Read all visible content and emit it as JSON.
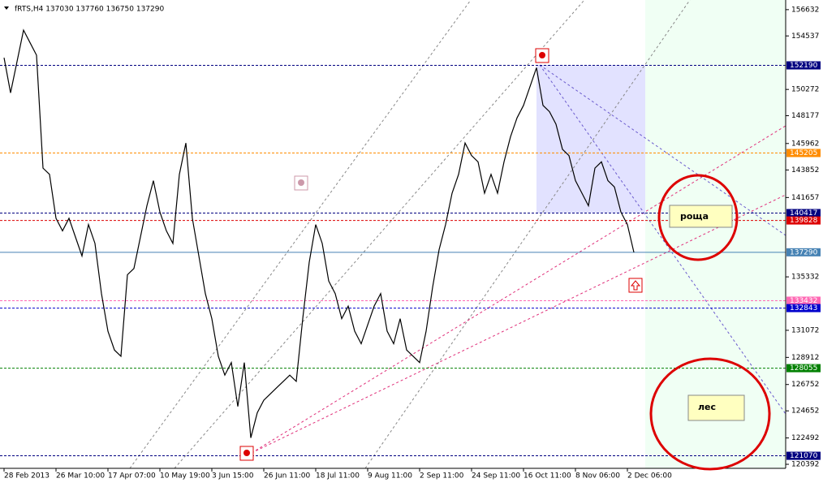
{
  "chart_data": {
    "type": "line",
    "title": "fRTS,H4 137030 137760 136750 137290",
    "categories": [
      "28 Feb 2013",
      null,
      null,
      null,
      null,
      null,
      null,
      null,
      "26 Mar 10:00",
      null,
      null,
      null,
      null,
      null,
      null,
      null,
      "17 Apr 07:00",
      null,
      null,
      null,
      null,
      null,
      null,
      null,
      "10 May 19:00",
      null,
      null,
      null,
      null,
      null,
      null,
      null,
      "3 Jun 15:00",
      null,
      null,
      null,
      null,
      null,
      null,
      null,
      "26 Jun 11:00",
      null,
      null,
      null,
      null,
      null,
      null,
      null,
      "18 Jul 11:00",
      null,
      null,
      null,
      null,
      null,
      null,
      null,
      "9 Aug 11:00",
      null,
      null,
      null,
      null,
      null,
      null,
      null,
      "2 Sep 11:00",
      null,
      null,
      null,
      null,
      null,
      null,
      null,
      "24 Sep 11:00",
      null,
      null,
      null,
      null,
      null,
      null,
      null,
      "16 Oct 11:00",
      null,
      null,
      null,
      null,
      null,
      null,
      null,
      "8 Nov 06:00",
      null,
      null,
      null,
      null,
      null,
      null,
      null,
      "2 Dec 06:00",
      null
    ],
    "series": [
      {
        "name": "fRTS",
        "color": "#000000",
        "values": [
          152800,
          150000,
          152500,
          155000,
          154000,
          153000,
          144000,
          143500,
          140000,
          139000,
          140000,
          138500,
          137000,
          139500,
          138000,
          134000,
          131000,
          129500,
          129000,
          135500,
          136000,
          138500,
          141000,
          143000,
          140500,
          139000,
          138000,
          143500,
          146000,
          140000,
          137000,
          134000,
          132000,
          129000,
          127500,
          128500,
          125000,
          128500,
          122500,
          124500,
          125500,
          126000,
          126500,
          127000,
          127500,
          127000,
          132000,
          136500,
          139500,
          138000,
          135000,
          134000,
          132000,
          133000,
          131000,
          130000,
          131500,
          133000,
          134000,
          131000,
          130000,
          132000,
          129500,
          129000,
          128500,
          131000,
          134500,
          137500,
          139500,
          142000,
          143500,
          146000,
          145000,
          144500,
          142000,
          143500,
          142000,
          144500,
          146500,
          148000,
          149000,
          150500,
          152000,
          149000,
          148500,
          147500,
          145500,
          145000,
          143000,
          142000,
          141000,
          144000,
          144500,
          143000,
          142500,
          140500,
          139500,
          137290
        ]
      }
    ],
    "ylim": [
      120070,
      157400
    ],
    "yticks": [
      156632,
      154537,
      150272,
      148177,
      145962,
      143852,
      141657,
      135332,
      131072,
      128912,
      126752,
      124652,
      122492,
      120392
    ],
    "levels": [
      {
        "value": 152190,
        "color": "#000080"
      },
      {
        "value": 145205,
        "color": "#ff8c00"
      },
      {
        "value": 140417,
        "color": "#000080"
      },
      {
        "value": 139828,
        "color": "#dd0000"
      },
      {
        "value": 137290,
        "color": "#4682b4"
      },
      {
        "value": 133432,
        "color": "#ff69b4"
      },
      {
        "value": 132843,
        "color": "#0000cc"
      },
      {
        "value": 128055,
        "color": "#008000"
      },
      {
        "value": 121070,
        "color": "#000080"
      }
    ],
    "annotations": [
      "роща",
      "лес"
    ]
  }
}
